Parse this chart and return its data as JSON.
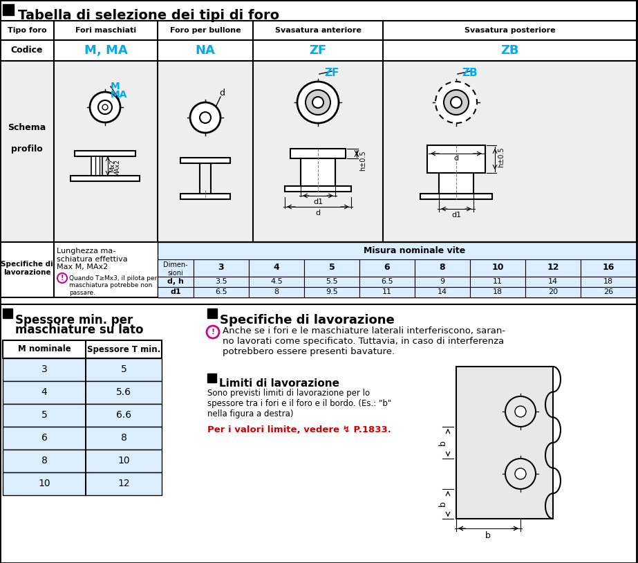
{
  "title": "Tabella di selezione dei tipi di foro",
  "header_row": [
    "Tipo foro",
    "Fori maschiati",
    "Foro per bullone",
    "Svasatura anteriore",
    "Svasatura posteriore"
  ],
  "codice_row": [
    "Codice",
    "M, MA",
    "NA",
    "ZF",
    "ZB"
  ],
  "specifiche_left_text": "Lunghezza ma-\nschiatura effettiva\nMax M, MAx2",
  "specifiche_note": "Quando T≥Mx3, il pilota per\nmaschiatura potrebbe non\npassare.",
  "misura_title": "Misura nominale vite",
  "misura_sizes": [
    "3",
    "4",
    "5",
    "6",
    "8",
    "10",
    "12",
    "16"
  ],
  "dh_values": [
    "3.5",
    "4.5",
    "5.5",
    "6.5",
    "9",
    "11",
    "14",
    "18"
  ],
  "d1_values": [
    "6.5",
    "8",
    "9.5",
    "11",
    "14",
    "18",
    "20",
    "26"
  ],
  "section2_title_line1": "Spessore min. per",
  "section2_title_line2": "maschiature su lato",
  "table2_headers": [
    "M nominale",
    "Spessore T min."
  ],
  "table2_data": [
    [
      "3",
      "5"
    ],
    [
      "4",
      "5.6"
    ],
    [
      "5",
      "6.6"
    ],
    [
      "6",
      "8"
    ],
    [
      "8",
      "10"
    ],
    [
      "10",
      "12"
    ]
  ],
  "section3_title": "Specifiche di lavorazione",
  "section3_text1": "Anche se i fori e le maschiature laterali interferiscono, saran-\nno lavorati come specificato. Tuttavia, in caso di interferenza\npotrebbero essere presenti bavature.",
  "section4_title": "Limiti di lavorazione",
  "section4_text": "Sono previsti limiti di lavorazione per lo\nspessore tra i fori e il foro e il bordo. (Es.: \"b\"\nnella figura a destra)",
  "section4_red": "Per i valori limite, vedere ↯ P.1833.",
  "cyan": "#00aaee",
  "magenta": "#cc0099",
  "red": "#cc0000",
  "light_blue_bg": "#dbeeff",
  "schema_bg": "#eeeeee"
}
